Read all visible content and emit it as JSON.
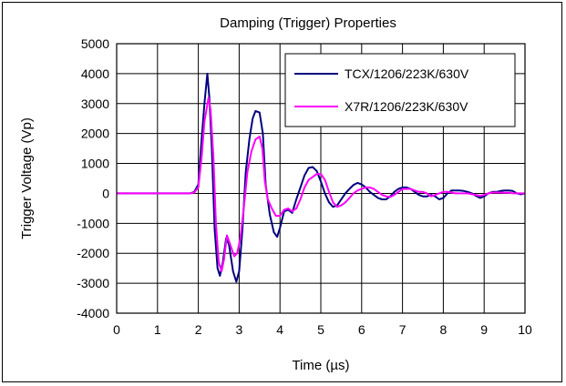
{
  "chart_data": {
    "type": "line",
    "title": "Damping (Trigger) Properties",
    "xlabel": "Time (µs)",
    "ylabel": "Trigger Voltage (Vp)",
    "xlim": [
      0,
      10
    ],
    "ylim": [
      -4000,
      5000
    ],
    "x_ticks": [
      "0",
      "1",
      "2",
      "3",
      "4",
      "5",
      "6",
      "7",
      "8",
      "9",
      "10"
    ],
    "y_ticks": [
      "5000",
      "4000",
      "3000",
      "2000",
      "1000",
      "0",
      "-1000",
      "-2000",
      "-3000",
      "-4000"
    ],
    "grid": true,
    "legend_position": "top-right",
    "series": [
      {
        "name": "TCX/1206/223K/630V",
        "color": "#000080",
        "points": [
          [
            0,
            0
          ],
          [
            1.5,
            0
          ],
          [
            1.8,
            0
          ],
          [
            1.9,
            50
          ],
          [
            2.0,
            300
          ],
          [
            2.08,
            1800
          ],
          [
            2.15,
            3000
          ],
          [
            2.22,
            4000
          ],
          [
            2.27,
            3200
          ],
          [
            2.33,
            1500
          ],
          [
            2.4,
            -1200
          ],
          [
            2.47,
            -2500
          ],
          [
            2.53,
            -2750
          ],
          [
            2.6,
            -2300
          ],
          [
            2.68,
            -1500
          ],
          [
            2.75,
            -1700
          ],
          [
            2.85,
            -2600
          ],
          [
            2.93,
            -2950
          ],
          [
            3.0,
            -2600
          ],
          [
            3.08,
            -1200
          ],
          [
            3.16,
            700
          ],
          [
            3.25,
            1800
          ],
          [
            3.33,
            2500
          ],
          [
            3.4,
            2750
          ],
          [
            3.5,
            2700
          ],
          [
            3.58,
            2000
          ],
          [
            3.65,
            300
          ],
          [
            3.75,
            -700
          ],
          [
            3.85,
            -1300
          ],
          [
            3.93,
            -1450
          ],
          [
            4.0,
            -1150
          ],
          [
            4.1,
            -600
          ],
          [
            4.2,
            -550
          ],
          [
            4.3,
            -650
          ],
          [
            4.4,
            -200
          ],
          [
            4.5,
            200
          ],
          [
            4.6,
            600
          ],
          [
            4.7,
            850
          ],
          [
            4.8,
            880
          ],
          [
            4.9,
            750
          ],
          [
            5.0,
            400
          ],
          [
            5.1,
            0
          ],
          [
            5.2,
            -300
          ],
          [
            5.3,
            -450
          ],
          [
            5.4,
            -400
          ],
          [
            5.5,
            -200
          ],
          [
            5.6,
            0
          ],
          [
            5.7,
            150
          ],
          [
            5.8,
            280
          ],
          [
            5.9,
            350
          ],
          [
            6.0,
            300
          ],
          [
            6.1,
            200
          ],
          [
            6.2,
            50
          ],
          [
            6.3,
            -50
          ],
          [
            6.4,
            -150
          ],
          [
            6.5,
            -200
          ],
          [
            6.6,
            -200
          ],
          [
            6.7,
            -100
          ],
          [
            6.8,
            50
          ],
          [
            6.9,
            150
          ],
          [
            7.0,
            200
          ],
          [
            7.1,
            200
          ],
          [
            7.2,
            150
          ],
          [
            7.3,
            50
          ],
          [
            7.4,
            -50
          ],
          [
            7.5,
            -100
          ],
          [
            7.6,
            -100
          ],
          [
            7.7,
            -50
          ],
          [
            7.8,
            -100
          ],
          [
            7.9,
            -200
          ],
          [
            8.0,
            -150
          ],
          [
            8.1,
            0
          ],
          [
            8.2,
            100
          ],
          [
            8.3,
            100
          ],
          [
            8.4,
            100
          ],
          [
            8.5,
            80
          ],
          [
            8.6,
            50
          ],
          [
            8.7,
            0
          ],
          [
            8.8,
            -80
          ],
          [
            8.9,
            -150
          ],
          [
            9.0,
            -100
          ],
          [
            9.1,
            0
          ],
          [
            9.2,
            50
          ],
          [
            9.3,
            50
          ],
          [
            9.4,
            80
          ],
          [
            9.5,
            100
          ],
          [
            9.6,
            100
          ],
          [
            9.7,
            80
          ],
          [
            9.8,
            0
          ],
          [
            9.9,
            -30
          ],
          [
            10.0,
            0
          ]
        ]
      },
      {
        "name": "X7R/1206/223K/630V",
        "color": "#ff00ff",
        "points": [
          [
            0,
            0
          ],
          [
            1.5,
            0
          ],
          [
            1.8,
            0
          ],
          [
            1.9,
            30
          ],
          [
            2.0,
            200
          ],
          [
            2.08,
            1200
          ],
          [
            2.15,
            2400
          ],
          [
            2.25,
            3200
          ],
          [
            2.3,
            2800
          ],
          [
            2.37,
            1200
          ],
          [
            2.43,
            -1000
          ],
          [
            2.5,
            -2300
          ],
          [
            2.57,
            -2600
          ],
          [
            2.63,
            -2200
          ],
          [
            2.7,
            -1400
          ],
          [
            2.78,
            -1700
          ],
          [
            2.88,
            -2100
          ],
          [
            2.95,
            -2000
          ],
          [
            3.03,
            -1500
          ],
          [
            3.12,
            -400
          ],
          [
            3.2,
            700
          ],
          [
            3.3,
            1400
          ],
          [
            3.4,
            1800
          ],
          [
            3.5,
            1900
          ],
          [
            3.57,
            1500
          ],
          [
            3.63,
            400
          ],
          [
            3.7,
            -200
          ],
          [
            3.8,
            -500
          ],
          [
            3.9,
            -750
          ],
          [
            4.0,
            -750
          ],
          [
            4.1,
            -550
          ],
          [
            4.2,
            -500
          ],
          [
            4.3,
            -600
          ],
          [
            4.4,
            -500
          ],
          [
            4.5,
            -200
          ],
          [
            4.6,
            200
          ],
          [
            4.7,
            450
          ],
          [
            4.8,
            550
          ],
          [
            4.9,
            650
          ],
          [
            5.0,
            650
          ],
          [
            5.1,
            450
          ],
          [
            5.2,
            50
          ],
          [
            5.3,
            -300
          ],
          [
            5.4,
            -450
          ],
          [
            5.5,
            -400
          ],
          [
            5.6,
            -300
          ],
          [
            5.7,
            -150
          ],
          [
            5.8,
            0
          ],
          [
            5.9,
            100
          ],
          [
            6.0,
            150
          ],
          [
            6.1,
            200
          ],
          [
            6.2,
            200
          ],
          [
            6.3,
            150
          ],
          [
            6.4,
            50
          ],
          [
            6.5,
            -50
          ],
          [
            6.6,
            -100
          ],
          [
            6.7,
            -120
          ],
          [
            6.8,
            -50
          ],
          [
            6.9,
            50
          ],
          [
            7.0,
            150
          ],
          [
            7.1,
            150
          ],
          [
            7.2,
            150
          ],
          [
            7.3,
            100
          ],
          [
            7.4,
            50
          ],
          [
            7.5,
            50
          ],
          [
            7.6,
            0
          ],
          [
            7.7,
            -100
          ],
          [
            7.8,
            -50
          ],
          [
            7.9,
            0
          ],
          [
            8.0,
            50
          ],
          [
            8.1,
            50
          ],
          [
            8.2,
            30
          ],
          [
            8.3,
            0
          ],
          [
            8.4,
            0
          ],
          [
            8.5,
            0
          ],
          [
            8.6,
            0
          ],
          [
            8.7,
            -30
          ],
          [
            8.8,
            -50
          ],
          [
            8.9,
            -80
          ],
          [
            9.0,
            -50
          ],
          [
            9.1,
            0
          ],
          [
            9.2,
            30
          ],
          [
            9.3,
            30
          ],
          [
            9.4,
            30
          ],
          [
            9.5,
            20
          ],
          [
            9.6,
            20
          ],
          [
            9.7,
            0
          ],
          [
            9.8,
            0
          ],
          [
            9.9,
            0
          ],
          [
            10.0,
            0
          ]
        ]
      }
    ]
  }
}
